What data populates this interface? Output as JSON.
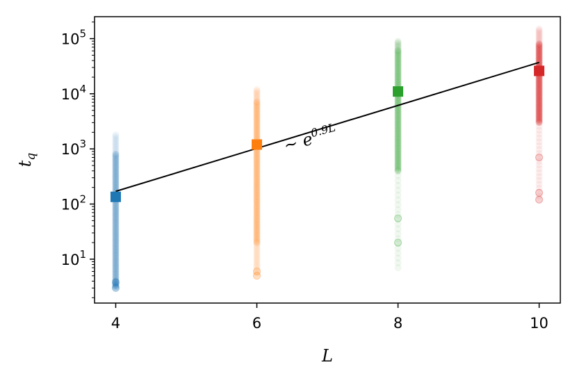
{
  "chart_data": {
    "type": "scatter",
    "title": "",
    "xlabel": "L",
    "ylabel": "t",
    "ylabel_sub": "q",
    "yscale": "log",
    "xlim": [
      3.7,
      10.3
    ],
    "ylim": [
      1.6,
      250000
    ],
    "grid": false,
    "legend": "none",
    "x_ticks": [
      4,
      6,
      8,
      10
    ],
    "x_tick_labels": [
      "4",
      "6",
      "8",
      "10"
    ],
    "y_ticks": [
      10,
      100,
      1000,
      10000,
      100000
    ],
    "y_tick_bases": [
      "10",
      "10",
      "10",
      "10",
      "10"
    ],
    "y_tick_exps": [
      "1",
      "2",
      "3",
      "4",
      "5"
    ],
    "series": [
      {
        "x": 4,
        "color": "#1f77b4",
        "median": 135,
        "dense_range": [
          4,
          800
        ],
        "sparse_range": [
          3,
          1800
        ],
        "outliers": [
          3,
          3.8
        ]
      },
      {
        "x": 6,
        "color": "#ff7f0e",
        "median": 1200,
        "dense_range": [
          20,
          7000
        ],
        "sparse_range": [
          5,
          12000
        ],
        "outliers": [
          5,
          6
        ]
      },
      {
        "x": 8,
        "color": "#2ca02c",
        "median": 11000,
        "dense_range": [
          400,
          60000
        ],
        "sparse_range": [
          7,
          90000
        ],
        "outliers": [
          20,
          55
        ]
      },
      {
        "x": 10,
        "color": "#d62728",
        "median": 26000,
        "dense_range": [
          3000,
          80000
        ],
        "sparse_range": [
          120,
          150000
        ],
        "outliers": [
          120,
          160,
          700
        ]
      }
    ],
    "fit": {
      "x": [
        4,
        10
      ],
      "y": [
        170,
        37000
      ],
      "color": "#000000"
    },
    "annotation": {
      "prefix": "~ e",
      "exponent": "0.9L",
      "x": 6.85,
      "y": 900,
      "rotation_deg": -15
    }
  }
}
